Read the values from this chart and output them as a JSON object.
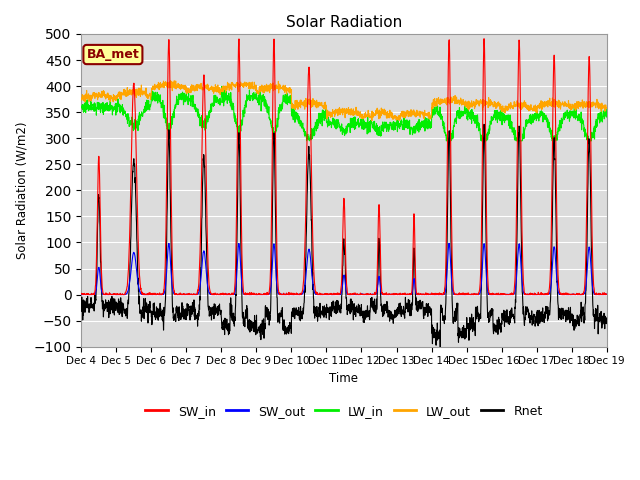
{
  "title": "Solar Radiation",
  "xlabel": "Time",
  "ylabel": "Solar Radiation (W/m2)",
  "annotation": "BA_met",
  "ylim": [
    -100,
    500
  ],
  "legend_entries": [
    "SW_in",
    "SW_out",
    "LW_in",
    "LW_out",
    "Rnet"
  ],
  "line_colors": {
    "SW_in": "#FF0000",
    "SW_out": "#0000FF",
    "LW_in": "#00EE00",
    "LW_out": "#FFA500",
    "Rnet": "#000000"
  },
  "x_tick_labels": [
    "Dec 4",
    "Dec 5",
    "Dec 6",
    "Dec 7",
    "Dec 8",
    "Dec 9",
    "Dec 10",
    "Dec 11",
    "Dec 12",
    "Dec 13",
    "Dec 14",
    "Dec 15",
    "Dec 16",
    "Dec 17",
    "Dec 18",
    "Dec 19"
  ],
  "bg_color": "#DCDCDC",
  "annotation_bg": "#FFFF99",
  "annotation_border": "#8B0000",
  "n_days": 15,
  "pts_per_day": 144
}
